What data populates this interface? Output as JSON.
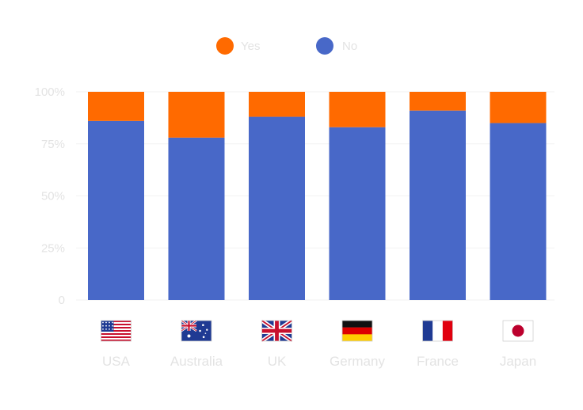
{
  "chart_data": {
    "type": "bar",
    "stacked": true,
    "categories": [
      "USA",
      "Australia",
      "UK",
      "Germany",
      "France",
      "Japan"
    ],
    "category_icons": [
      "flag-usa-icon",
      "flag-australia-icon",
      "flag-uk-icon",
      "flag-germany-icon",
      "flag-france-icon",
      "flag-japan-icon"
    ],
    "series": [
      {
        "name": "No",
        "color": "#4868c8",
        "values": [
          86,
          78,
          88,
          83,
          91,
          85
        ]
      },
      {
        "name": "Yes",
        "color": "#ff6a00",
        "values": [
          14,
          22,
          12,
          17,
          9,
          15
        ]
      }
    ],
    "legend_order": [
      "Yes",
      "No"
    ],
    "legend_position": "top-center",
    "yticks": [
      "0",
      "25%",
      "50%",
      "75%",
      "100%"
    ],
    "ylim": [
      0,
      100
    ],
    "grid": true,
    "title": "",
    "xlabel": "",
    "ylabel": ""
  }
}
